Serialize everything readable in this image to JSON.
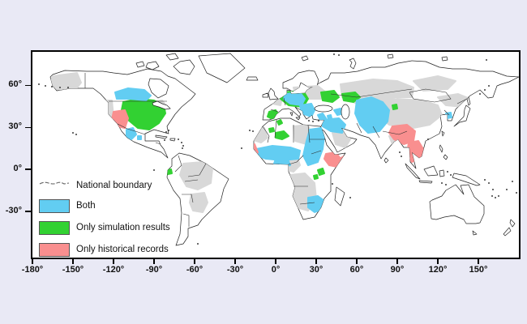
{
  "axes": {
    "x_tick_labels": [
      "-180°",
      "-150°",
      "-120°",
      "-90°",
      "-60°",
      "-30°",
      "0°",
      "30°",
      "60°",
      "90°",
      "120°",
      "150°"
    ],
    "y_tick_labels": [
      "60°",
      "30°",
      "0°",
      "-30°"
    ]
  },
  "legend": {
    "national_boundary_label": "National boundary",
    "both_label": "Both",
    "simulation_label": "Only simulation results",
    "historical_label": "Only historical records"
  },
  "map": {
    "categories": [
      "Both",
      "Only simulation results",
      "Only historical records",
      "National boundary"
    ],
    "colors": {
      "both": "#62cdf2",
      "only_simulation": "#32d132",
      "only_historical": "#f98f8f",
      "no_data_gray": "#d8d8d8",
      "land_fill": "#ffffff",
      "boundary_line": "#222222",
      "page_background": "#e9e9f5"
    }
  }
}
